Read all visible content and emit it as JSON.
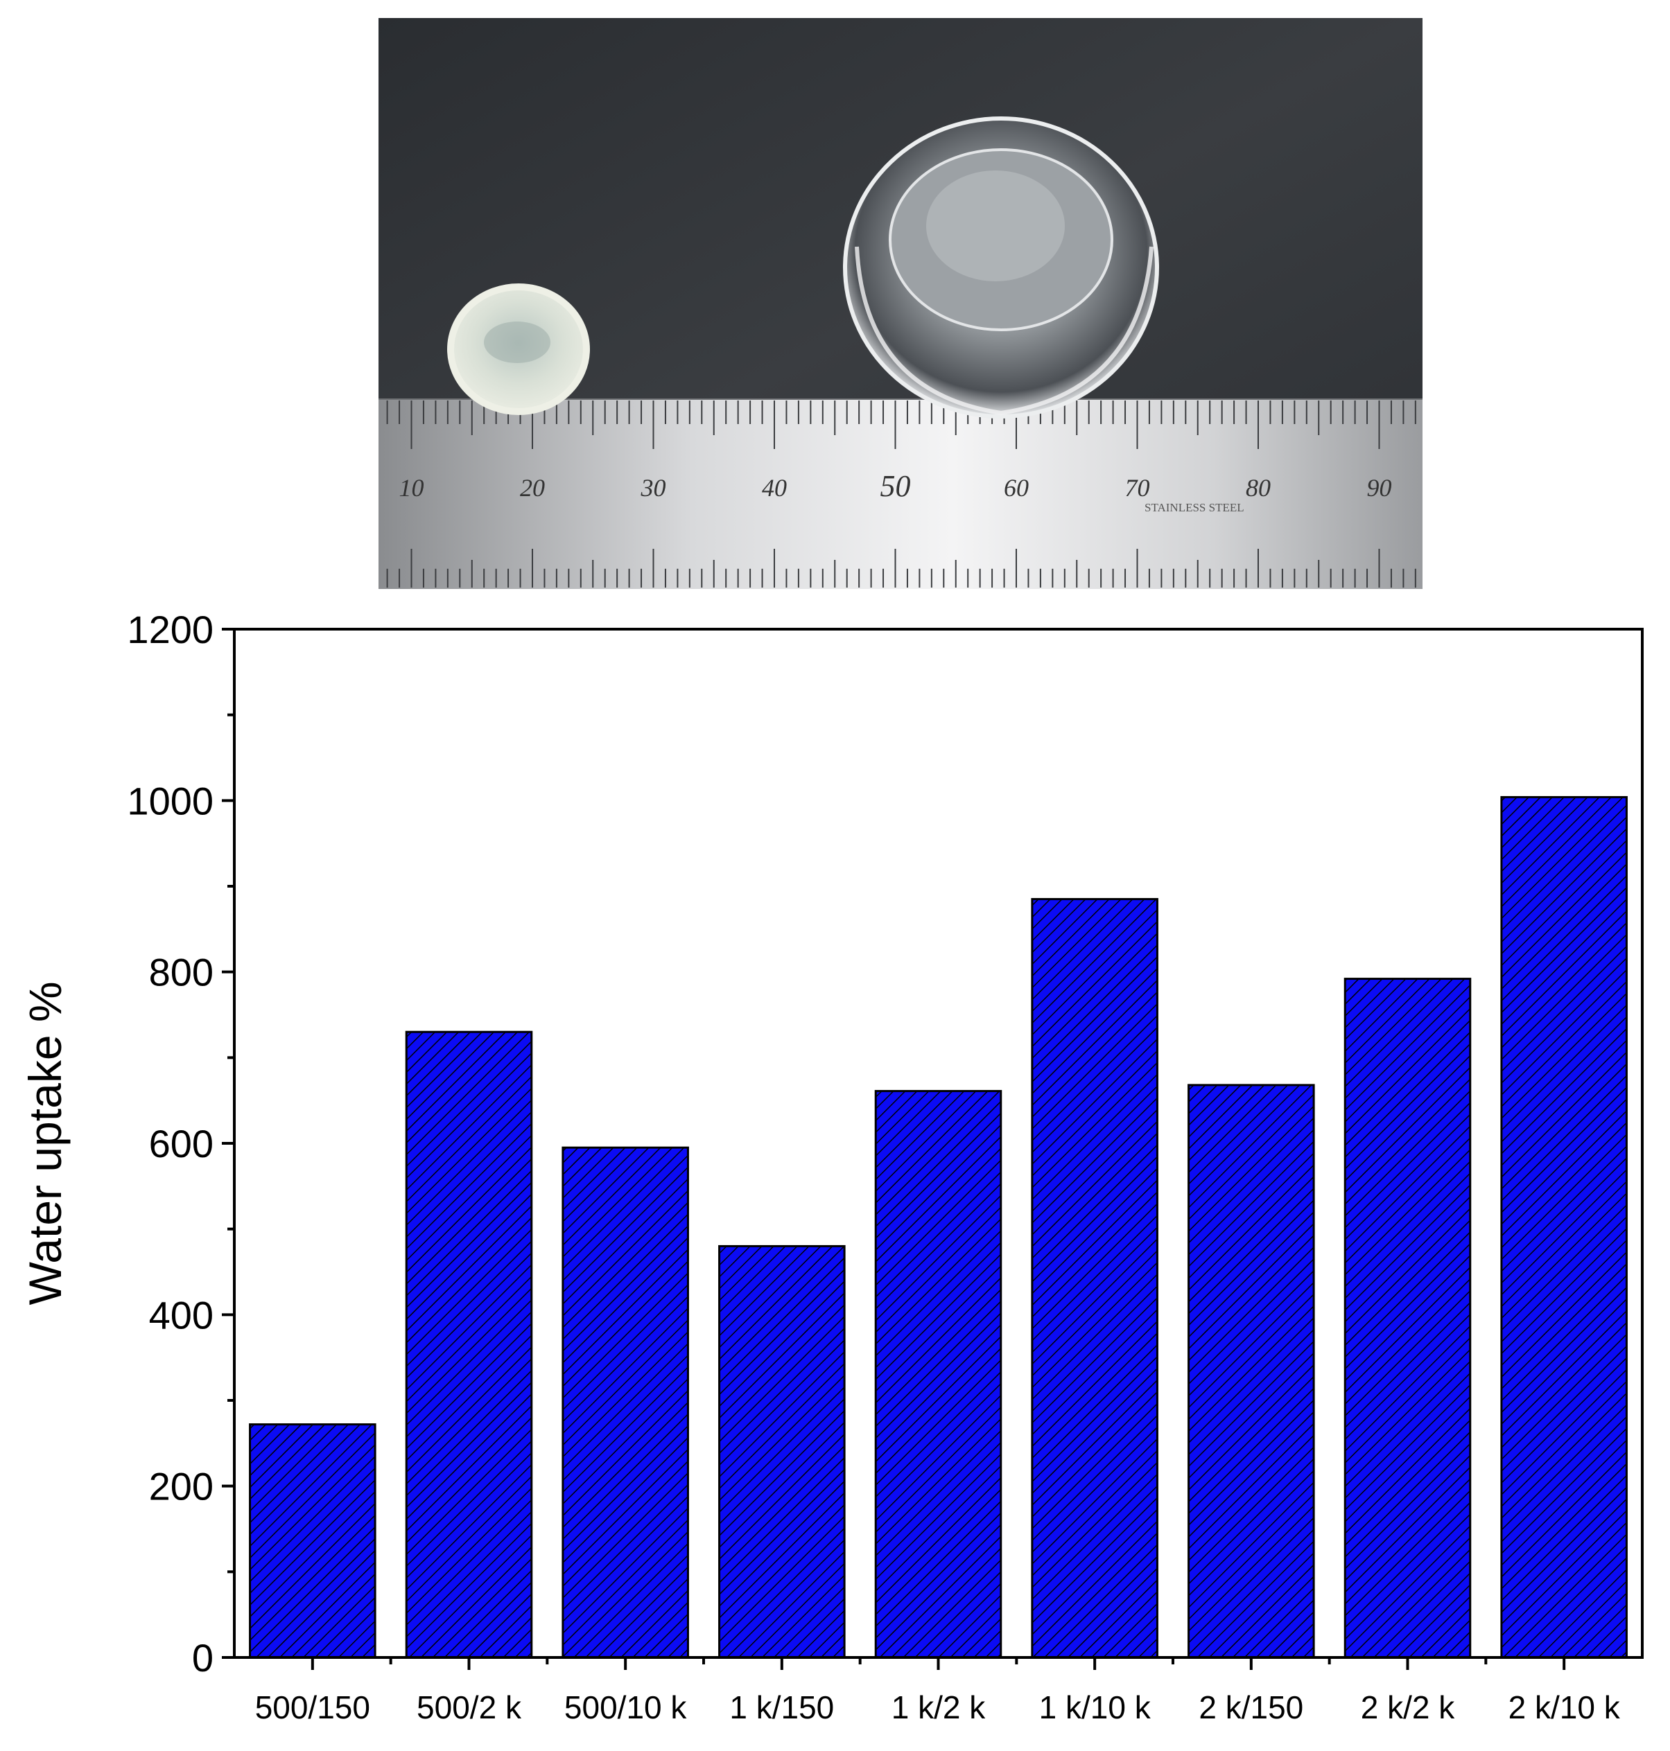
{
  "photo": {
    "ruler_numbers": [
      "10",
      "20",
      "30",
      "40",
      "50",
      "60",
      "70",
      "80",
      "90"
    ],
    "ruler_brand": "STAINLESS STEEL"
  },
  "chart_data": {
    "type": "bar",
    "title": "",
    "xlabel": "",
    "ylabel": "Water uptake %",
    "categories": [
      "500/150",
      "500/2 k",
      "500/10 k",
      "1 k/150",
      "1 k/2 k",
      "1 k/10 k",
      "2 k/150",
      "2 k/2 k",
      "2 k/10 k"
    ],
    "values": [
      272,
      730,
      595,
      480,
      661,
      885,
      668,
      792,
      1004
    ],
    "ylim": [
      0,
      1200
    ],
    "yticks": [
      0,
      200,
      400,
      600,
      800,
      1000,
      1200
    ],
    "ytick_labels": [
      "0",
      "200",
      "400",
      "600",
      "800",
      "1000",
      "1200"
    ],
    "bar_color": "#0b0bf5",
    "hatch": "diagonal",
    "grid": false,
    "legend": "none"
  }
}
